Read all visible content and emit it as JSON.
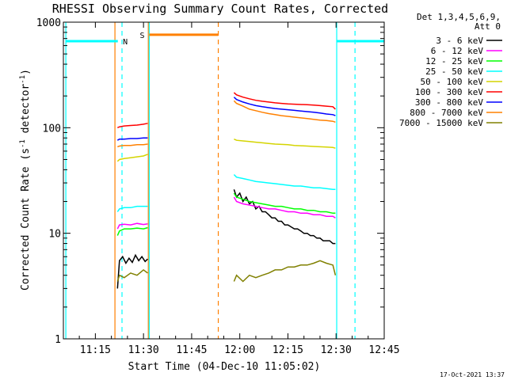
{
  "chart_data": {
    "type": "line",
    "title": "RHESSI Observing Summary Count Rates, Corrected",
    "xlabel": "Start Time (04-Dec-10 11:05:02)",
    "ylabel": "Corrected Count Rate (s",
    "ylabel_sup1": "-1",
    "ylabel_mid": " detector",
    "ylabel_sup2": "-1",
    "ylabel_end": ")",
    "y_scale": "log",
    "xlim": [
      665.033,
      765
    ],
    "ylim": [
      1,
      1000
    ],
    "x_ticks": [
      {
        "value": 675,
        "label": "11:15"
      },
      {
        "value": 690,
        "label": "11:30"
      },
      {
        "value": 705,
        "label": "11:45"
      },
      {
        "value": 720,
        "label": "12:00"
      },
      {
        "value": 735,
        "label": "12:15"
      },
      {
        "value": 750,
        "label": "12:30"
      },
      {
        "value": 765,
        "label": "12:45"
      }
    ],
    "y_ticks": [
      {
        "value": 1,
        "label": "1"
      },
      {
        "value": 10,
        "label": "10"
      },
      {
        "value": 100,
        "label": "100"
      },
      {
        "value": 1000,
        "label": "1000"
      }
    ],
    "legend": {
      "placement": "top-right",
      "header": [
        "Det 1,3,4,5,6,9,",
        "Att 0"
      ]
    },
    "series": [
      {
        "name": "3 - 6 keV",
        "color": "#000000",
        "x": [
          681.9,
          682.5,
          683.5,
          684.5,
          685.5,
          686.5,
          687.5,
          688.5,
          689.5,
          690.5,
          691.3,
          null,
          718.2,
          719,
          720,
          721,
          722,
          723,
          724,
          725,
          726,
          727,
          728,
          729,
          730,
          731,
          732,
          733,
          734,
          735,
          736,
          737,
          738,
          739,
          740,
          741,
          742,
          743,
          744,
          745,
          746,
          747,
          748,
          749,
          749.8
        ],
        "y": [
          3,
          5.5,
          6,
          5.2,
          5.8,
          5.3,
          6.2,
          5.5,
          6,
          5.4,
          5.7,
          null,
          26,
          22,
          24,
          20,
          22,
          19,
          20,
          17,
          18,
          16,
          16,
          15,
          14,
          14,
          13,
          13,
          12,
          12,
          11.5,
          11,
          11,
          10.5,
          10,
          10,
          9.5,
          9.5,
          9,
          9,
          8.5,
          8.5,
          8.5,
          8,
          8
        ]
      },
      {
        "name": "6 - 12 keV",
        "color": "#ff00ff",
        "x": [
          681.9,
          682.5,
          684,
          686,
          688,
          690,
          691.3,
          null,
          718.2,
          719,
          721,
          723,
          725,
          727,
          729,
          731,
          733,
          735,
          737,
          739,
          741,
          743,
          745,
          747,
          749,
          749.8
        ],
        "y": [
          11,
          12,
          12.2,
          12,
          12.4,
          12.1,
          12.3,
          null,
          22,
          20,
          19,
          18.5,
          18,
          17.5,
          17,
          17,
          16.5,
          16,
          16,
          15.5,
          15.5,
          15,
          15,
          14.5,
          14.5,
          14
        ]
      },
      {
        "name": "12 - 25 keV",
        "color": "#00ff00",
        "x": [
          681.9,
          682.5,
          684,
          686,
          688,
          690,
          691.3,
          null,
          718.2,
          719,
          721,
          723,
          725,
          727,
          729,
          731,
          733,
          735,
          737,
          739,
          741,
          743,
          745,
          747,
          749,
          749.8
        ],
        "y": [
          9.5,
          10.5,
          11,
          11,
          11.2,
          11,
          11.3,
          null,
          24,
          22,
          21,
          20,
          19.5,
          19,
          18.5,
          18,
          18,
          17.5,
          17,
          17,
          16.5,
          16.5,
          16,
          16,
          15.5,
          15.5
        ]
      },
      {
        "name": "25 - 50 keV",
        "color": "#00ffff",
        "x": [
          681.9,
          682.5,
          684,
          686,
          688,
          690,
          691.3,
          null,
          718.2,
          719,
          721,
          723,
          725,
          727,
          729,
          731,
          733,
          735,
          737,
          739,
          741,
          743,
          745,
          747,
          749,
          749.8
        ],
        "y": [
          16,
          17,
          17.5,
          17.5,
          18,
          18,
          18,
          null,
          36,
          34,
          33,
          32,
          31,
          30.5,
          30,
          29.5,
          29,
          28.5,
          28,
          28,
          27.5,
          27,
          27,
          26.5,
          26,
          26
        ]
      },
      {
        "name": "50 - 100 keV",
        "color": "#d4d400",
        "x": [
          681.9,
          682.5,
          684,
          686,
          688,
          690,
          691.3,
          null,
          718.2,
          719,
          721,
          723,
          725,
          727,
          729,
          731,
          733,
          735,
          737,
          739,
          741,
          743,
          745,
          747,
          749,
          749.8
        ],
        "y": [
          48,
          50,
          51,
          52,
          53,
          54,
          56,
          null,
          78,
          76,
          75,
          74,
          73,
          72,
          71,
          70,
          69.5,
          69,
          68,
          67.5,
          67,
          66.5,
          66,
          65.5,
          65,
          64
        ]
      },
      {
        "name": "100 - 300 keV",
        "color": "#ff0000",
        "x": [
          681.9,
          682.5,
          684,
          686,
          688,
          690,
          691.3,
          null,
          718.2,
          719,
          721,
          723,
          725,
          727,
          729,
          731,
          733,
          735,
          737,
          739,
          741,
          743,
          745,
          747,
          749,
          749.8
        ],
        "y": [
          100,
          102,
          104,
          105,
          106,
          108,
          110,
          null,
          215,
          205,
          195,
          188,
          182,
          178,
          175,
          172,
          170,
          168,
          167,
          166,
          165,
          164,
          162,
          160,
          158,
          150
        ]
      },
      {
        "name": "300 - 800 keV",
        "color": "#0000ff",
        "x": [
          681.9,
          682.5,
          684,
          686,
          688,
          690,
          691.3,
          null,
          718.2,
          719,
          721,
          723,
          725,
          727,
          729,
          731,
          733,
          735,
          737,
          739,
          741,
          743,
          745,
          747,
          749,
          749.8
        ],
        "y": [
          76,
          78,
          78,
          79,
          79,
          80,
          80,
          null,
          195,
          185,
          175,
          168,
          162,
          158,
          155,
          152,
          150,
          148,
          146,
          144,
          142,
          140,
          138,
          135,
          133,
          130
        ]
      },
      {
        "name": "800 - 7000 keV",
        "color": "#ff8000",
        "x": [
          681.9,
          682.5,
          684,
          686,
          688,
          690,
          691.3,
          null,
          718.2,
          719,
          721,
          723,
          725,
          727,
          729,
          731,
          733,
          735,
          737,
          739,
          741,
          743,
          745,
          747,
          749,
          749.8
        ],
        "y": [
          66,
          67,
          68,
          68,
          69,
          69,
          70,
          null,
          180,
          170,
          160,
          150,
          145,
          140,
          136,
          133,
          130,
          128,
          126,
          124,
          122,
          120,
          118,
          117,
          115,
          113
        ]
      },
      {
        "name": "7000 - 15000 keV",
        "color": "#808000",
        "x": [
          681.9,
          682.5,
          684,
          686,
          688,
          690,
          691.3,
          null,
          718.2,
          719,
          721,
          723,
          725,
          727,
          729,
          731,
          733,
          735,
          737,
          739,
          741,
          743,
          745,
          747,
          749,
          749.8
        ],
        "y": [
          3.5,
          4,
          3.8,
          4.2,
          4,
          4.5,
          4.2,
          null,
          3.5,
          4,
          3.5,
          4,
          3.8,
          4,
          4.2,
          4.5,
          4.5,
          4.8,
          4.8,
          5,
          5,
          5.2,
          5.5,
          5.2,
          5,
          4
        ]
      }
    ],
    "vertical_lines": [
      {
        "x": 665.8,
        "color": "#00ffff",
        "style": "solid"
      },
      {
        "x": 681.1,
        "color": "#ff8000",
        "style": "solid"
      },
      {
        "x": 683.3,
        "color": "#00ffff",
        "style": "dashed"
      },
      {
        "x": 691.5,
        "color": "#ff8000",
        "style": "solid"
      },
      {
        "x": 691.8,
        "color": "#00ffff",
        "style": "solid"
      },
      {
        "x": 713.3,
        "color": "#ff8000",
        "style": "dashed"
      },
      {
        "x": 750.2,
        "color": "#00ffff",
        "style": "solid"
      },
      {
        "x": 755.9,
        "color": "#00ffff",
        "style": "dashed"
      }
    ],
    "intervals": [
      {
        "x0": 665.8,
        "x1": 682,
        "y": 660,
        "color": "#00ffff",
        "label": "N"
      },
      {
        "x0": 691.8,
        "x1": 713.3,
        "y": 760,
        "color": "#ff8000",
        "label": "S"
      },
      {
        "x0": 750.2,
        "x1": 765,
        "y": 660,
        "color": "#00ffff",
        "label": ""
      }
    ],
    "timestamp": "17-Oct-2021 13:37"
  }
}
